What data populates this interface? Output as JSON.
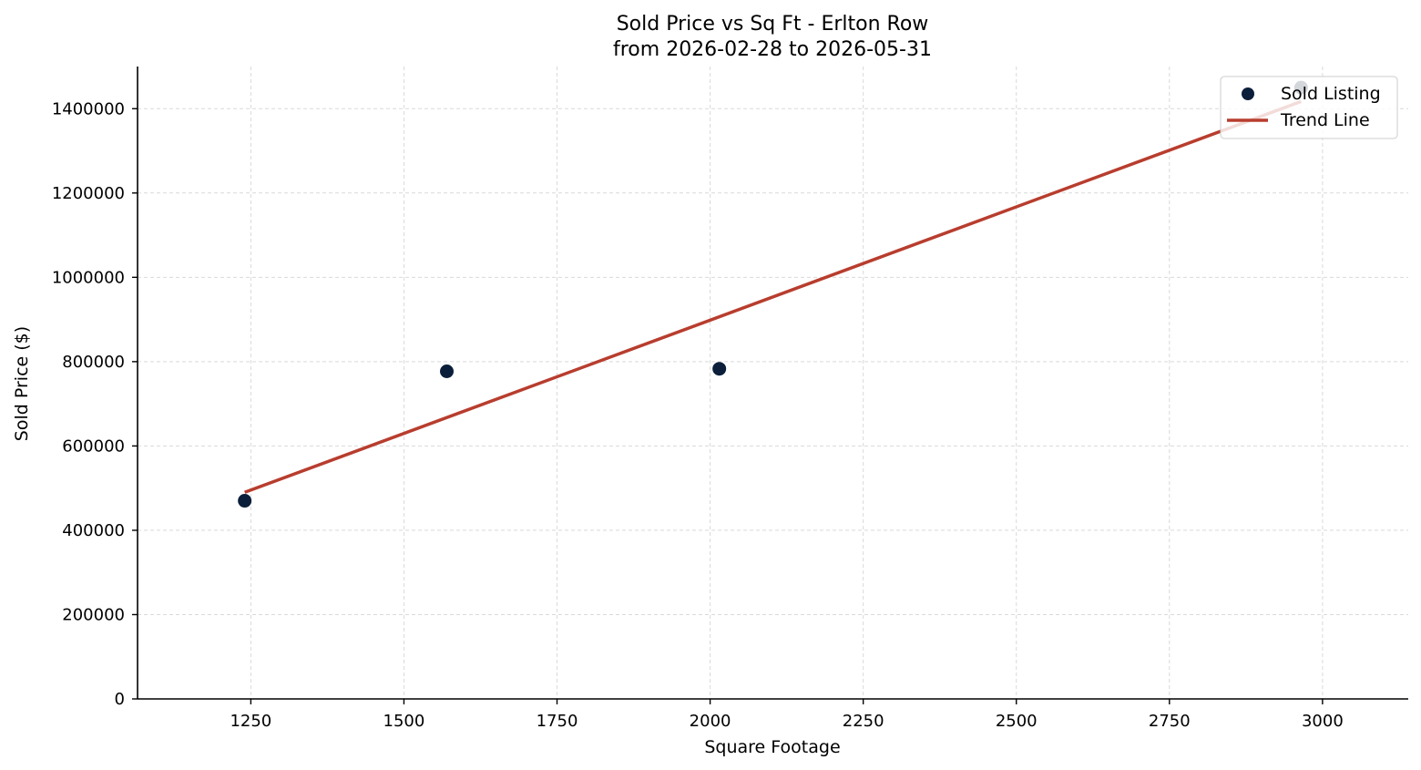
{
  "chart_data": {
    "type": "scatter",
    "title": "Sold Price vs Sq Ft - Erlton Row",
    "subtitle": "from 2026-02-28 to 2026-05-31",
    "xlabel": "Square Footage",
    "ylabel": "Sold Price ($)",
    "xlim": [
      1065,
      3140
    ],
    "ylim": [
      0,
      1500000
    ],
    "xticks": [
      1250,
      1500,
      1750,
      2000,
      2250,
      2500,
      2750,
      3000
    ],
    "yticks": [
      0,
      200000,
      400000,
      600000,
      800000,
      1000000,
      1200000,
      1400000
    ],
    "grid": true,
    "legend_position": "top-right",
    "series": [
      {
        "name": "Sold Listing",
        "kind": "scatter",
        "color": "#0b1f3a",
        "points": [
          {
            "x": 1240,
            "y": 470000
          },
          {
            "x": 1570,
            "y": 777000
          },
          {
            "x": 2015,
            "y": 783000
          },
          {
            "x": 2965,
            "y": 1450000
          }
        ]
      },
      {
        "name": "Trend Line",
        "kind": "line",
        "color": "#b83d2e",
        "points": [
          {
            "x": 1240,
            "y": 490000
          },
          {
            "x": 2965,
            "y": 1417000
          }
        ]
      }
    ]
  }
}
